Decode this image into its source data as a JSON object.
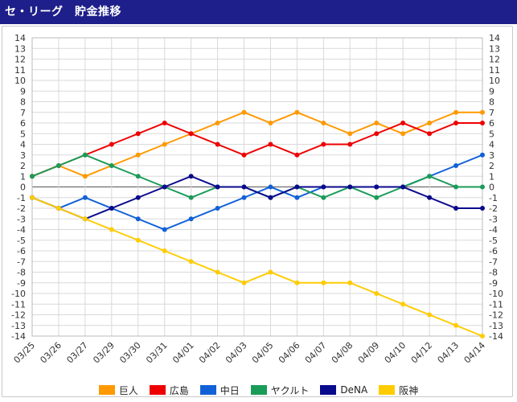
{
  "header": {
    "title": "セ・リーグ　貯金推移"
  },
  "chart_data": {
    "type": "line",
    "title": "セ・リーグ　貯金推移",
    "categories": [
      "03/25",
      "03/26",
      "03/27",
      "03/29",
      "03/30",
      "03/31",
      "04/01",
      "04/02",
      "04/03",
      "04/05",
      "04/06",
      "04/07",
      "04/08",
      "04/09",
      "04/10",
      "04/12",
      "04/13",
      "04/14"
    ],
    "ylim": [
      -14,
      14
    ],
    "yticks": [
      14,
      13,
      12,
      11,
      10,
      9,
      8,
      7,
      6,
      5,
      4,
      3,
      2,
      1,
      0,
      -1,
      -2,
      -3,
      -4,
      -5,
      -6,
      -7,
      -8,
      -9,
      -10,
      -11,
      -12,
      -13,
      -14
    ],
    "grid": true,
    "legend_position": "bottom",
    "series": [
      {
        "name": "巨人",
        "color": "#ff9900",
        "values": [
          1,
          2,
          1,
          2,
          3,
          4,
          5,
          6,
          7,
          6,
          7,
          6,
          5,
          6,
          5,
          6,
          7,
          7
        ]
      },
      {
        "name": "広島",
        "color": "#ee0000",
        "values": [
          1,
          2,
          3,
          4,
          5,
          6,
          5,
          4,
          3,
          4,
          3,
          4,
          4,
          5,
          6,
          5,
          6,
          6
        ]
      },
      {
        "name": "中日",
        "color": "#1060d8",
        "values": [
          -1,
          -2,
          -1,
          -2,
          -3,
          -4,
          -3,
          -2,
          -1,
          0,
          -1,
          0,
          0,
          0,
          0,
          1,
          2,
          3
        ]
      },
      {
        "name": "ヤクルト",
        "color": "#1a9c58",
        "values": [
          1,
          2,
          3,
          2,
          1,
          0,
          -1,
          0,
          0,
          -1,
          0,
          -1,
          0,
          -1,
          0,
          1,
          0,
          0
        ]
      },
      {
        "name": "DeNA",
        "color": "#0a0a8c",
        "values": [
          -1,
          -2,
          -3,
          -2,
          -1,
          0,
          1,
          0,
          0,
          -1,
          0,
          0,
          0,
          0,
          0,
          -1,
          -2,
          -2
        ]
      },
      {
        "name": "阪神",
        "color": "#ffcc00",
        "values": [
          -1,
          -2,
          -3,
          -4,
          -5,
          -6,
          -7,
          -8,
          -9,
          -8,
          -9,
          -9,
          -9,
          -10,
          -11,
          -12,
          -13,
          -14
        ]
      }
    ]
  }
}
